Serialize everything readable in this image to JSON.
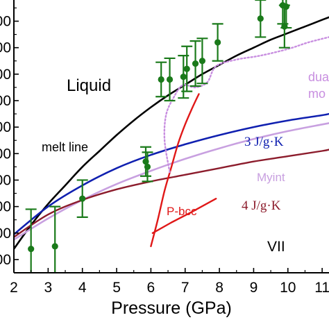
{
  "chart_data": {
    "type": "line",
    "xlabel": "Pressure (GPa)",
    "ylabel": "",
    "xlim": [
      2,
      11.2
    ],
    "ylim": [
      0,
      10.3
    ],
    "x_ticks": [
      "2",
      "3",
      "4",
      "5",
      "6",
      "7",
      "8",
      "9",
      "10",
      "11"
    ],
    "y_tick_labels": [
      "00",
      "00",
      "00",
      "00",
      "00",
      "00",
      "00",
      "00",
      "00",
      "00"
    ],
    "y_tick_values": [
      0.5,
      1.5,
      2.5,
      3.5,
      4.5,
      5.5,
      6.5,
      7.5,
      8.5,
      9.5
    ],
    "grid": false,
    "annotations": {
      "liquid": "Liquid",
      "melt_line": "melt line",
      "vii": "VII",
      "p_bcc": "P-bcc",
      "myint": "Myint",
      "three_jgk": "3 J/g·K",
      "four_jgk": "4 J/g·K",
      "dual_1": "dua",
      "dual_2": "mo"
    },
    "colors": {
      "melt_line": "#000000",
      "three_jgk": "#1020b0",
      "four_jgk": "#8c1c2c",
      "myint": "#c8a0e0",
      "p_bcc": "#e01818",
      "dual": "#c88ee0",
      "data_points": "#1a7a1a"
    },
    "series": [
      {
        "name": "melt line",
        "x": [
          2.0,
          2.5,
          3.0,
          3.5,
          4.0,
          4.5,
          5.0,
          5.5,
          6.0,
          6.5,
          7.0,
          7.5,
          8.0,
          8.5,
          9.0,
          9.5,
          10.0,
          10.5,
          11.0,
          11.2
        ],
        "y": [
          0.9,
          1.8,
          2.6,
          3.3,
          4.0,
          4.6,
          5.2,
          5.75,
          6.25,
          6.7,
          7.1,
          7.5,
          7.85,
          8.2,
          8.5,
          8.8,
          9.05,
          9.3,
          9.55,
          9.65
        ]
      },
      {
        "name": "3 J/g·K",
        "x": [
          2.0,
          3.0,
          4.0,
          5.0,
          6.0,
          7.0,
          8.0,
          9.0,
          10.0,
          11.0,
          11.2
        ],
        "y": [
          1.45,
          2.5,
          3.3,
          3.95,
          4.45,
          4.85,
          5.2,
          5.5,
          5.75,
          5.95,
          6.0
        ]
      },
      {
        "name": "Myint",
        "x": [
          2.0,
          3.0,
          4.0,
          5.0,
          6.0,
          7.0,
          8.0,
          9.0,
          10.0,
          11.0,
          11.2
        ],
        "y": [
          1.25,
          2.05,
          2.75,
          3.35,
          3.85,
          4.3,
          4.7,
          5.05,
          5.35,
          5.6,
          5.65
        ]
      },
      {
        "name": "4 J/g·K",
        "x": [
          2.0,
          3.0,
          4.0,
          5.0,
          6.0,
          7.0,
          8.0,
          9.0,
          10.0,
          11.0,
          11.2
        ],
        "y": [
          1.35,
          2.2,
          2.75,
          3.15,
          3.45,
          3.7,
          3.95,
          4.2,
          4.4,
          4.6,
          4.65
        ]
      },
      {
        "name": "P-bcc",
        "x": [
          6.0,
          6.2,
          6.4,
          6.6,
          6.8,
          7.0,
          7.2,
          7.4
        ],
        "y": [
          1.0,
          2.0,
          3.1,
          4.0,
          4.9,
          5.6,
          6.2,
          6.75
        ]
      },
      {
        "name": "P-bcc lower",
        "x": [
          6.05,
          6.6,
          7.2,
          7.9
        ],
        "y": [
          1.5,
          1.9,
          2.3,
          2.8
        ]
      },
      {
        "name": "dual",
        "x": [
          6.55,
          6.4,
          6.45,
          6.7,
          6.85,
          7.0,
          7.3,
          7.65,
          7.9,
          8.5,
          9.2,
          10.0,
          10.6,
          11.2
        ],
        "y": [
          3.8,
          5.0,
          6.0,
          6.7,
          7.0,
          7.1,
          7.0,
          7.2,
          7.8,
          8.05,
          8.2,
          8.45,
          8.7,
          8.9
        ]
      }
    ],
    "data_points": [
      {
        "x": 2.5,
        "y": 0.9,
        "err": 1.5
      },
      {
        "x": 3.2,
        "y": 1.0,
        "err": 1.5
      },
      {
        "x": 4.0,
        "y": 2.8,
        "err": 0.7
      },
      {
        "x": 5.85,
        "y": 4.2,
        "err": 0.55
      },
      {
        "x": 5.9,
        "y": 4.0,
        "err": 0.55
      },
      {
        "x": 6.3,
        "y": 7.3,
        "err": 0.65
      },
      {
        "x": 6.55,
        "y": 7.3,
        "err": 0.8
      },
      {
        "x": 6.95,
        "y": 7.4,
        "err": 0.8
      },
      {
        "x": 7.05,
        "y": 7.7,
        "err": 0.85
      },
      {
        "x": 7.3,
        "y": 7.9,
        "err": 0.85
      },
      {
        "x": 7.5,
        "y": 8.0,
        "err": 0.85
      },
      {
        "x": 7.95,
        "y": 8.7,
        "err": 0.7
      },
      {
        "x": 9.2,
        "y": 9.6,
        "err": 0.7
      },
      {
        "x": 9.85,
        "y": 10.1,
        "err": 0.7
      },
      {
        "x": 9.9,
        "y": 9.3,
        "err": 0.8
      },
      {
        "x": 9.95,
        "y": 10.05,
        "err": 0.8
      }
    ]
  }
}
